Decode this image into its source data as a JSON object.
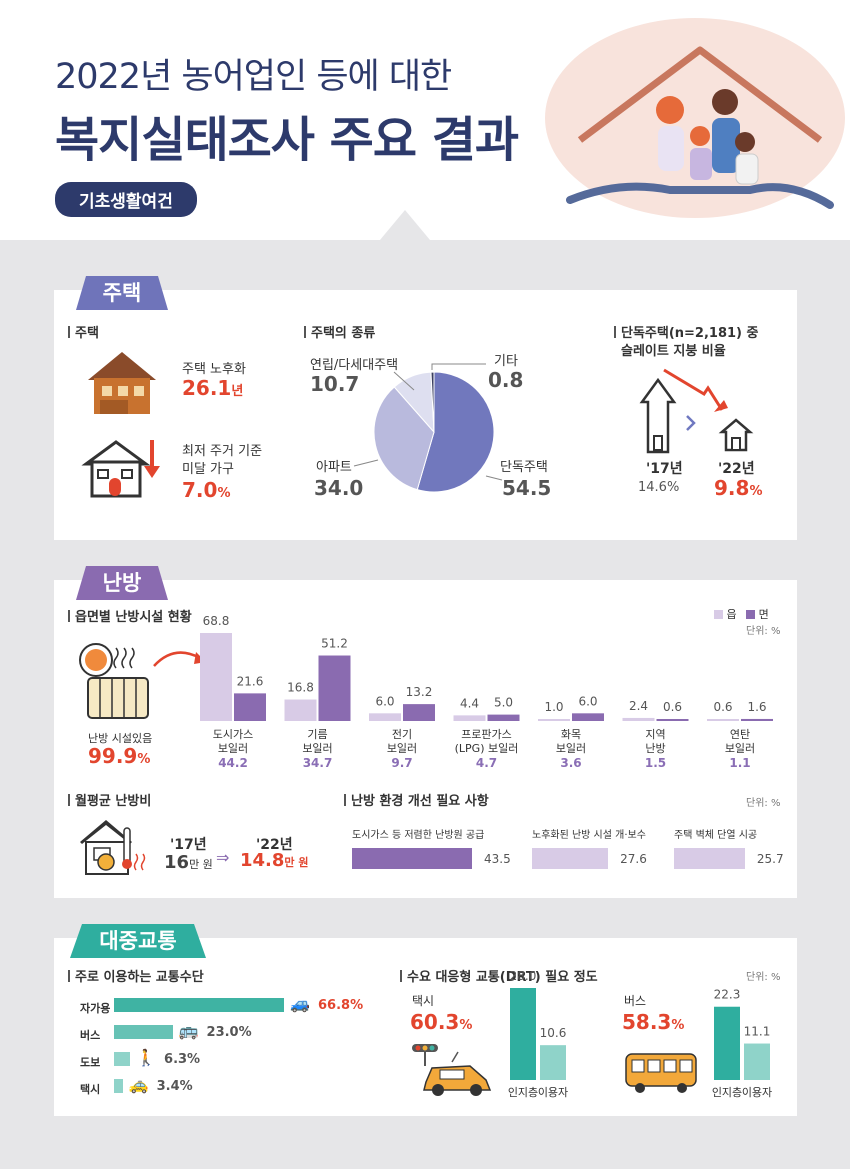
{
  "header": {
    "title_line1": "2022년 농어업인 등에 대한",
    "title_line2": "복지실태조사 주요 결과",
    "tag": "기초생활여건"
  },
  "housing": {
    "tab": "주택",
    "sec1_label": "주택",
    "aging_label": "주택 노후화",
    "aging_value": "26.1",
    "aging_unit": "년",
    "substd_label1": "최저 주거 기준",
    "substd_label2": "미달 가구",
    "substd_value": "7.0",
    "substd_unit": "%",
    "sec2_label": "주택의 종류",
    "sec3_label1": "단독주택(n=2,181) 중",
    "sec3_label2": "슬레이트 지붕 비율",
    "slate": {
      "y1": "'17년",
      "v1": "14.6%",
      "y2": "'22년",
      "v2": "9.8",
      "v2_unit": "%"
    }
  },
  "heating": {
    "tab": "난방",
    "sec1_label": "읍면별 난방시설 현황",
    "legend": [
      "읍",
      "면"
    ],
    "unit": "단위: %",
    "has_heating_label": "난방 시설있음",
    "has_heating_value": "99.9",
    "has_heating_unit": "%",
    "cost_label": "월평균 난방비",
    "cost": {
      "y1": "'17년",
      "v1": "16",
      "u1": "만 원",
      "y2": "'22년",
      "v2": "14.8",
      "u2": "만 원"
    },
    "improve_label": "난방 환경 개선 필요 사항",
    "improve_unit": "단위: %"
  },
  "transport": {
    "tab": "대중교통",
    "sec1_label": "주로 이용하는 교통수단",
    "sec2_label": "수요 대응형 교통(DRT) 필요 정도",
    "unit": "단위: %",
    "taxi_label": "택시",
    "taxi_value": "60.3",
    "bus_label": "버스",
    "bus_value": "58.3",
    "pct": "%"
  },
  "chart_data": [
    {
      "type": "pie",
      "title": "주택의 종류",
      "labels": [
        "단독주택",
        "아파트",
        "연립/다세대주택",
        "기타"
      ],
      "values": [
        54.5,
        34.0,
        10.7,
        0.8
      ],
      "value_labels": [
        "54.5",
        "34.0",
        "10.7",
        "0.8"
      ],
      "colors": [
        "#7178bd",
        "#b9badd",
        "#dedff0",
        "#3b3f60"
      ]
    },
    {
      "type": "bar",
      "title": "읍면별 난방시설 현황",
      "categories": [
        [
          "도시가스",
          "보일러"
        ],
        [
          "기름",
          "보일러"
        ],
        [
          "전기",
          "보일러"
        ],
        [
          "프로판가스",
          "(LPG) 보일러"
        ],
        [
          "화목",
          "보일러"
        ],
        [
          "지역",
          "난방"
        ],
        [
          "연탄",
          "보일러"
        ]
      ],
      "totals": [
        "44.2",
        "34.7",
        "9.7",
        "4.7",
        "3.6",
        "1.5",
        "1.1"
      ],
      "series": [
        {
          "name": "읍",
          "values": [
            68.8,
            16.8,
            6.0,
            4.4,
            1.0,
            2.4,
            0.6
          ],
          "labels": [
            "68.8",
            "16.8",
            "6.0",
            "4.4",
            "1.0",
            "2.4",
            "0.6"
          ],
          "color": "#d8cbe6"
        },
        {
          "name": "면",
          "values": [
            21.6,
            51.2,
            13.2,
            5.0,
            6.0,
            0.6,
            1.6
          ],
          "labels": [
            "21.6",
            "51.2",
            "13.2",
            "5.0",
            "6.0",
            "0.6",
            "1.6"
          ],
          "color": "#8a6bb0"
        }
      ],
      "ylim": [
        0,
        75
      ]
    },
    {
      "type": "bar",
      "title": "난방 환경 개선 필요 사항",
      "categories": [
        "도시가스 등 저렴한 난방원 공급",
        "노후화된 난방 시설 개·보수",
        "주택 벽체 단열 시공"
      ],
      "values": [
        43.5,
        27.6,
        25.7
      ],
      "labels": [
        "43.5",
        "27.6",
        "25.7"
      ],
      "colors": [
        "#8a6bb0",
        "#d8cbe6",
        "#d8cbe6"
      ]
    },
    {
      "type": "bar",
      "title": "주로 이용하는 교통수단",
      "categories": [
        "자가용",
        "버스",
        "도보",
        "택시"
      ],
      "values": [
        66.8,
        23.0,
        6.3,
        3.4
      ],
      "labels": [
        "66.8%",
        "23.0%",
        "6.3%",
        "3.4%"
      ],
      "icons": [
        "car-icon",
        "bus-icon",
        "walking-icon",
        "taxi-icon"
      ],
      "color": "#3fb3a3"
    },
    {
      "type": "bar",
      "title": "택시",
      "categories": [
        "인지층",
        "이용자"
      ],
      "values": [
        28.0,
        10.6
      ],
      "labels": [
        "28.0",
        "10.6"
      ],
      "colors": [
        "#2fae9f",
        "#8fd3c9"
      ]
    },
    {
      "type": "bar",
      "title": "버스",
      "categories": [
        "인지층",
        "이용자"
      ],
      "values": [
        22.3,
        11.1
      ],
      "labels": [
        "22.3",
        "11.1"
      ],
      "colors": [
        "#2fae9f",
        "#8fd3c9"
      ]
    }
  ]
}
